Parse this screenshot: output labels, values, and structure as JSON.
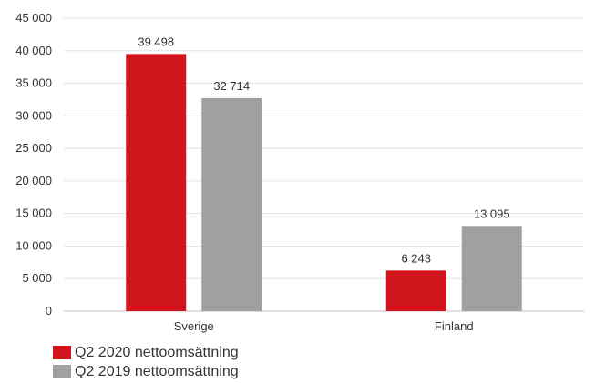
{
  "chart_data": {
    "type": "bar",
    "categories": [
      "Sverige",
      "Finland"
    ],
    "series": [
      {
        "name": "Q2 2020 nettoomsättning",
        "values": [
          39498,
          6243
        ],
        "labels": [
          "39 498",
          "6 243"
        ],
        "color": "#d0151d"
      },
      {
        "name": "Q2 2019 nettoomsättning",
        "values": [
          32714,
          13095
        ],
        "labels": [
          "32 714",
          "13 095"
        ],
        "color": "#a0a0a0"
      }
    ],
    "ylim": [
      0,
      45000
    ],
    "yticks": [
      0,
      5000,
      10000,
      15000,
      20000,
      25000,
      30000,
      35000,
      40000,
      45000
    ],
    "ytick_labels": [
      "0",
      "5 000",
      "10 000",
      "15 000",
      "20 000",
      "25 000",
      "30 000",
      "35 000",
      "40 000",
      "45 000"
    ],
    "grid": true,
    "legend_position": "bottom-left"
  }
}
